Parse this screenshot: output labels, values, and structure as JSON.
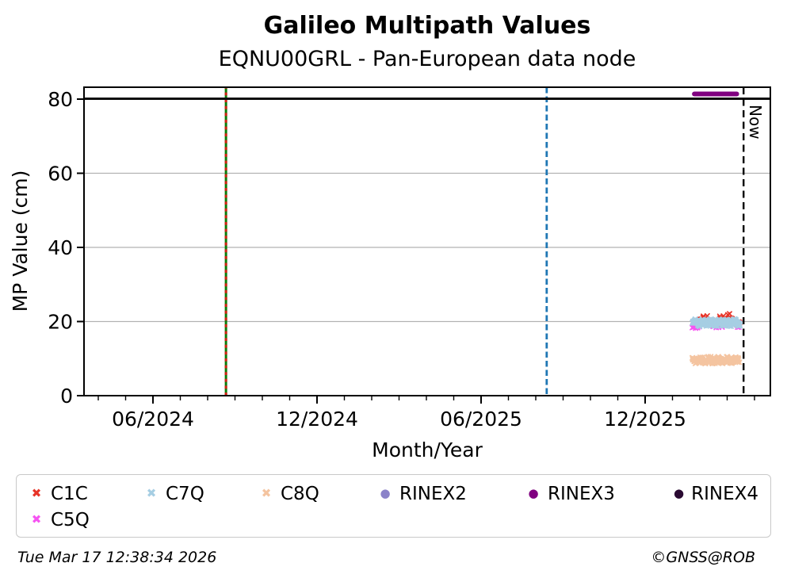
{
  "page_title": "Galileo Multipath Values",
  "chart_data": {
    "type": "scatter",
    "title": "Galileo Multipath Values",
    "subtitle": "EQNU00GRL - Pan-European data node",
    "xlabel": "Month/Year",
    "ylabel": "MP Value (cm)",
    "grid": "horizontal-only",
    "legend_position": "below",
    "x_axis": {
      "kind": "time",
      "anchor": "2024-06",
      "tick_labels": [
        "06/2024",
        "12/2024",
        "06/2025",
        "12/2025"
      ],
      "tick_month_offsets": [
        0,
        6,
        12,
        18
      ],
      "minor_tick_every_months": 1,
      "range_month_offsets": [
        -2.52,
        22.58
      ]
    },
    "y_axis": {
      "ticks": [
        0,
        20,
        40,
        60,
        80
      ],
      "range": [
        0,
        83.2
      ],
      "grid_at": [
        20,
        40,
        60,
        80
      ]
    },
    "series": [
      {
        "name": "C1C",
        "marker": "x",
        "color": "#e73428",
        "value_cm": 20.0,
        "spread_cm": 1.3,
        "start_month_offset": 19.75,
        "end_month_offset": 21.45,
        "approx_start": "2026-01",
        "approx_end": "2026-03",
        "n_points": 90
      },
      {
        "name": "C5Q",
        "marker": "x",
        "color": "#f654f2",
        "value_cm": 19.3,
        "spread_cm": 1.2,
        "start_month_offset": 19.75,
        "end_month_offset": 21.45,
        "approx_start": "2026-01",
        "approx_end": "2026-03",
        "n_points": 90
      },
      {
        "name": "C7Q",
        "marker": "x",
        "color": "#a6cee3",
        "value_cm": 19.7,
        "spread_cm": 1.1,
        "start_month_offset": 19.75,
        "end_month_offset": 21.45,
        "approx_start": "2026-01",
        "approx_end": "2026-03",
        "n_points": 270
      },
      {
        "name": "C8Q",
        "marker": "x",
        "color": "#f4c4a0",
        "value_cm": 9.6,
        "spread_cm": 1.1,
        "start_month_offset": 19.75,
        "end_month_offset": 21.42,
        "approx_start": "2026-01",
        "approx_end": "2026-03",
        "n_points": 230
      },
      {
        "name": "RINEX3",
        "marker": "thick-line",
        "color": "#800080",
        "value_cm": 81.4,
        "start_month_offset": 19.8,
        "end_month_offset": 21.35,
        "approx_start": "2026-01",
        "approx_end": "2026-03"
      },
      {
        "name": "RINEX4",
        "marker": "thick-line",
        "color": "#0d0d0d",
        "value_cm": 80.1,
        "start_month_offset": -2.52,
        "end_month_offset": 22.58,
        "approx_start": "2024-03",
        "approx_end": "2026-04"
      }
    ],
    "event_lines": [
      {
        "style": "solid-with-dashes",
        "colors": [
          "#0a7d0a",
          "#d32011"
        ],
        "month_offset": 2.67,
        "approx_date": "2024-08"
      },
      {
        "style": "dashed",
        "colors": [
          "#1f77b4"
        ],
        "month_offset": 14.4,
        "approx_date": "2025-08"
      },
      {
        "style": "dashed",
        "colors": [
          "#000000"
        ],
        "month_offset": 21.6,
        "approx_date": "2026-03-17",
        "label": "Now"
      }
    ]
  },
  "legend": {
    "items": [
      {
        "label": "C1C",
        "glyph": "✖",
        "marker": "x",
        "color": "#e73428"
      },
      {
        "label": "C7Q",
        "glyph": "✖",
        "marker": "x",
        "color": "#a6cee3"
      },
      {
        "label": "C8Q",
        "glyph": "✖",
        "marker": "x",
        "color": "#f4c4a0"
      },
      {
        "label": "RINEX2",
        "glyph": "●",
        "marker": "dot",
        "color": "#8b82c9"
      },
      {
        "label": "RINEX3",
        "glyph": "●",
        "marker": "dot",
        "color": "#800080"
      },
      {
        "label": "RINEX4",
        "glyph": "●",
        "marker": "dot",
        "color": "#2a0a32"
      },
      {
        "label": "C5Q",
        "glyph": "✖",
        "marker": "x",
        "color": "#f654f2"
      }
    ]
  },
  "footer": {
    "timestamp": "Tue Mar 17 12:38:34 2026",
    "copyright": "©GNSS@ROB"
  }
}
